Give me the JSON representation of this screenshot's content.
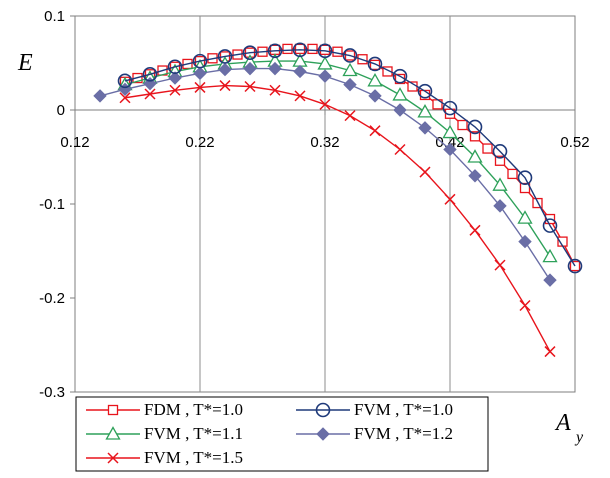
{
  "chart_data": {
    "type": "line",
    "title": "",
    "ylabel": "E",
    "xlabel": "A",
    "xlabel_sub": "y",
    "xlim": [
      0.12,
      0.52
    ],
    "ylim": [
      -0.3,
      0.1
    ],
    "x_ticks": [
      0.12,
      0.22,
      0.32,
      0.42,
      0.52
    ],
    "x_tick_labels": [
      "0.12",
      "0.22",
      "0.32",
      "0.42",
      "0.52"
    ],
    "y_ticks": [
      0.1,
      0,
      -0.1,
      -0.2,
      -0.3
    ],
    "y_tick_labels": [
      "0.1",
      "0",
      "-0.1",
      "-0.2",
      "-0.3"
    ],
    "grid": "vertical",
    "legend_placement": "bottom-left",
    "series": [
      {
        "name": "FDM , T*=1.0",
        "color": "#e8141c",
        "marker": "square",
        "x": [
          0.16,
          0.17,
          0.18,
          0.19,
          0.2,
          0.21,
          0.22,
          0.23,
          0.24,
          0.25,
          0.26,
          0.27,
          0.28,
          0.29,
          0.3,
          0.31,
          0.32,
          0.33,
          0.34,
          0.35,
          0.36,
          0.37,
          0.38,
          0.39,
          0.4,
          0.41,
          0.42,
          0.43,
          0.44,
          0.45,
          0.46,
          0.47,
          0.48,
          0.49,
          0.5,
          0.51,
          0.52
        ],
        "y": [
          0.03,
          0.034,
          0.038,
          0.042,
          0.046,
          0.049,
          0.052,
          0.055,
          0.057,
          0.059,
          0.061,
          0.062,
          0.064,
          0.065,
          0.065,
          0.065,
          0.064,
          0.062,
          0.058,
          0.054,
          0.048,
          0.041,
          0.033,
          0.025,
          0.016,
          0.006,
          -0.004,
          -0.016,
          -0.028,
          -0.041,
          -0.054,
          -0.068,
          -0.083,
          -0.099,
          -0.116,
          -0.14,
          -0.166
        ]
      },
      {
        "name": "FVM , T*=1.0",
        "color": "#1f3a7a",
        "marker": "circle",
        "x": [
          0.16,
          0.18,
          0.2,
          0.22,
          0.24,
          0.26,
          0.28,
          0.3,
          0.32,
          0.34,
          0.36,
          0.38,
          0.4,
          0.42,
          0.44,
          0.46,
          0.48,
          0.5,
          0.52
        ],
        "y": [
          0.031,
          0.038,
          0.046,
          0.052,
          0.057,
          0.061,
          0.063,
          0.064,
          0.063,
          0.058,
          0.049,
          0.036,
          0.02,
          0.002,
          -0.018,
          -0.044,
          -0.072,
          -0.123,
          -0.166
        ]
      },
      {
        "name": "FVM , T*=1.1",
        "color": "#2ea15a",
        "marker": "triangle",
        "x": [
          0.16,
          0.18,
          0.2,
          0.22,
          0.24,
          0.26,
          0.28,
          0.3,
          0.32,
          0.34,
          0.36,
          0.38,
          0.4,
          0.42,
          0.44,
          0.46,
          0.48,
          0.5
        ],
        "y": [
          0.027,
          0.034,
          0.041,
          0.046,
          0.049,
          0.051,
          0.052,
          0.052,
          0.049,
          0.042,
          0.031,
          0.016,
          -0.002,
          -0.024,
          -0.05,
          -0.08,
          -0.115,
          -0.156
        ]
      },
      {
        "name": "FVM , T*=1.2",
        "color": "#6a6ea6",
        "marker": "diamond",
        "x": [
          0.14,
          0.16,
          0.18,
          0.2,
          0.22,
          0.24,
          0.26,
          0.28,
          0.3,
          0.32,
          0.34,
          0.36,
          0.38,
          0.4,
          0.42,
          0.44,
          0.46,
          0.48,
          0.5
        ],
        "y": [
          0.015,
          0.022,
          0.028,
          0.034,
          0.039,
          0.043,
          0.044,
          0.044,
          0.041,
          0.036,
          0.027,
          0.015,
          0.0,
          -0.019,
          -0.042,
          -0.07,
          -0.102,
          -0.14,
          -0.181
        ]
      },
      {
        "name": "FVM , T*=1.5",
        "color": "#e8141c",
        "marker": "x",
        "x": [
          0.16,
          0.18,
          0.2,
          0.22,
          0.24,
          0.26,
          0.28,
          0.3,
          0.32,
          0.34,
          0.36,
          0.38,
          0.4,
          0.42,
          0.44,
          0.46,
          0.48,
          0.5
        ],
        "y": [
          0.013,
          0.017,
          0.021,
          0.024,
          0.026,
          0.025,
          0.021,
          0.015,
          0.006,
          -0.006,
          -0.022,
          -0.042,
          -0.066,
          -0.095,
          -0.128,
          -0.165,
          -0.208,
          -0.257
        ]
      }
    ]
  }
}
